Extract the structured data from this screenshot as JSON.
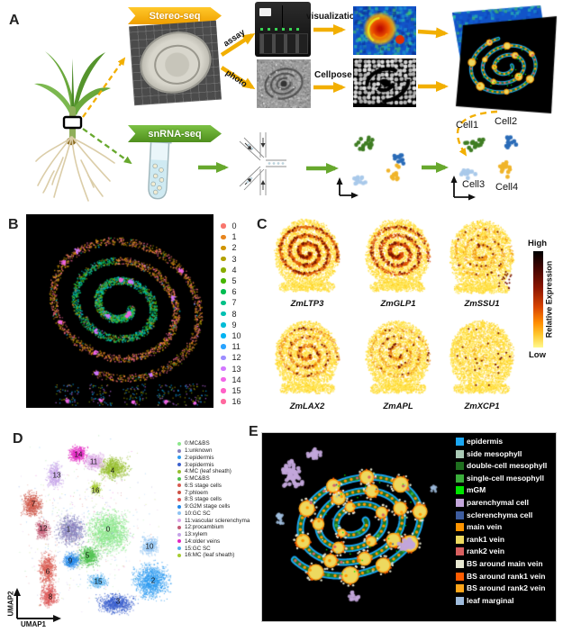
{
  "figure": {
    "panel_letters": [
      "A",
      "B",
      "C",
      "D",
      "E"
    ]
  },
  "panel_a": {
    "banners": {
      "stereo": "Stereo-seq",
      "snrna": "snRNA-seq"
    },
    "arrow_labels": {
      "assay": "assay",
      "photo": "photo"
    },
    "step_labels": {
      "visualization": "visualization",
      "cellpose": "Cellpose"
    },
    "cell_labels": [
      "Cell1",
      "Cell2",
      "Cell3",
      "Cell4"
    ],
    "cell_colors": [
      "#3F7D23",
      "#2B6CB8",
      "#A9C9EA",
      "#F0B429"
    ],
    "colors": {
      "yellow_accent": "#F2AF00",
      "green_accent": "#67A82D"
    }
  },
  "panel_b": {
    "clusters": [
      {
        "id": "0",
        "color": "#F8766D"
      },
      {
        "id": "1",
        "color": "#E7851E"
      },
      {
        "id": "2",
        "color": "#D09400"
      },
      {
        "id": "3",
        "color": "#B2A100"
      },
      {
        "id": "4",
        "color": "#89AC00"
      },
      {
        "id": "5",
        "color": "#45B500"
      },
      {
        "id": "6",
        "color": "#00BC51"
      },
      {
        "id": "7",
        "color": "#00C087"
      },
      {
        "id": "8",
        "color": "#00C0B2"
      },
      {
        "id": "9",
        "color": "#00BCD6"
      },
      {
        "id": "10",
        "color": "#00B3F2"
      },
      {
        "id": "11",
        "color": "#29A3FF"
      },
      {
        "id": "12",
        "color": "#9C8DFF"
      },
      {
        "id": "13",
        "color": "#D277FF"
      },
      {
        "id": "14",
        "color": "#F166E8"
      },
      {
        "id": "15",
        "color": "#FF61C7"
      },
      {
        "id": "16",
        "color": "#FF689E"
      }
    ]
  },
  "panel_c": {
    "genes": [
      "ZmLTP3",
      "ZmGLP1",
      "ZmSSU1",
      "ZmLAX2",
      "ZmAPL",
      "ZmXCP1"
    ],
    "colorbar": {
      "high": "High",
      "low": "Low",
      "label": "Relative Expression"
    }
  },
  "panel_d": {
    "axes": {
      "x": "UMAP1",
      "y": "UMAP2"
    },
    "legend": [
      {
        "label": "0:MC&BS",
        "color": "#8CE78C"
      },
      {
        "label": "1:unknown",
        "color": "#8781BD"
      },
      {
        "label": "2:epidermis",
        "color": "#2E9BF0"
      },
      {
        "label": "3:epidermis",
        "color": "#3A5FCD"
      },
      {
        "label": "4:MC (leaf sheath)",
        "color": "#96BE2E"
      },
      {
        "label": "5:MC&BS",
        "color": "#4FC24F"
      },
      {
        "label": "6:S stage cells",
        "color": "#D85A50"
      },
      {
        "label": "7:phloem",
        "color": "#CC5244"
      },
      {
        "label": "8:S stage cells",
        "color": "#DC5A5A"
      },
      {
        "label": "9:G2M stage cells",
        "color": "#2387E8"
      },
      {
        "label": "10:GC SC",
        "color": "#8FC3F2"
      },
      {
        "label": "11:vascular sclerenchyma",
        "color": "#D9A3E3"
      },
      {
        "label": "12:procambium",
        "color": "#C25B74"
      },
      {
        "label": "13:xylem",
        "color": "#C5A3E8"
      },
      {
        "label": "14:older veins",
        "color": "#E226C2"
      },
      {
        "label": "15:GC SC",
        "color": "#52AEEE"
      },
      {
        "label": "16:MC (leaf sheath)",
        "color": "#A6CC30"
      }
    ]
  },
  "panel_e": {
    "legend": [
      {
        "label": "epidermis",
        "color": "#1BA7F2"
      },
      {
        "label": "side mesophyll",
        "color": "#A9C9B5"
      },
      {
        "label": "double-cell mesophyll",
        "color": "#1F6F1F"
      },
      {
        "label": "single-cell mesophyll",
        "color": "#3BAE3B"
      },
      {
        "label": "mGM",
        "color": "#00E400"
      },
      {
        "label": "parenchymal cell",
        "color": "#C3A6DB"
      },
      {
        "label": "sclerenchyma cell",
        "color": "#3D5C9E"
      },
      {
        "label": "main vein",
        "color": "#FF9500"
      },
      {
        "label": "rank1 vein",
        "color": "#EDD95F"
      },
      {
        "label": "rank2 vein",
        "color": "#D96060"
      },
      {
        "label": "BS around main vein",
        "color": "#E7E8D2"
      },
      {
        "label": "BS around rank1 vein",
        "color": "#FF5C00"
      },
      {
        "label": "BS around rank2 vein",
        "color": "#FFA61A"
      },
      {
        "label": "leaf marginal",
        "color": "#9FBCDD"
      }
    ]
  }
}
